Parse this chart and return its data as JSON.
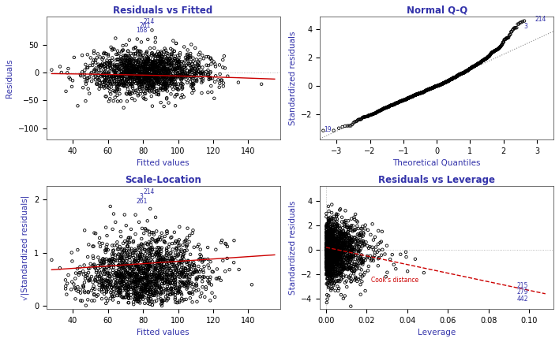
{
  "plot1": {
    "title": "Residuals vs Fitted",
    "xlabel": "Fitted values",
    "ylabel": "Residuals",
    "xlim": [
      25,
      158
    ],
    "ylim": [
      -120,
      100
    ],
    "yticks": [
      -100,
      -50,
      0,
      50
    ],
    "xticks": [
      40,
      60,
      80,
      100,
      120,
      140
    ]
  },
  "plot2": {
    "title": "Normal Q-Q",
    "xlabel": "Theoretical Quantiles",
    "ylabel": "Standardized residuals",
    "xlim": [
      -3.5,
      3.5
    ],
    "ylim": [
      -3.8,
      4.9
    ],
    "yticks": [
      -2,
      0,
      2,
      4
    ],
    "xticks": [
      -3,
      -2,
      -1,
      0,
      1,
      2,
      3
    ]
  },
  "plot3": {
    "title": "Scale-Location",
    "xlabel": "Fitted values",
    "ylabel": "√|Standardized residuals|",
    "xlim": [
      25,
      158
    ],
    "ylim": [
      -0.05,
      2.25
    ],
    "yticks": [
      0.0,
      1.0,
      2.0
    ],
    "xticks": [
      40,
      60,
      80,
      100,
      120,
      140
    ]
  },
  "plot4": {
    "title": "Residuals vs Leverage",
    "xlabel": "Leverage",
    "ylabel": "Standardized residuals",
    "xlim": [
      -0.003,
      0.112
    ],
    "ylim": [
      -4.8,
      5.2
    ],
    "yticks": [
      -4,
      -2,
      0,
      2,
      4
    ],
    "xticks": [
      0.0,
      0.02,
      0.04,
      0.06,
      0.08,
      0.1
    ]
  },
  "scatter_color": "#000000",
  "red_color": "#cc0000",
  "title_color": "#3333aa",
  "label_color": "#3333aa",
  "bg_color": "#ffffff",
  "seed": 42
}
